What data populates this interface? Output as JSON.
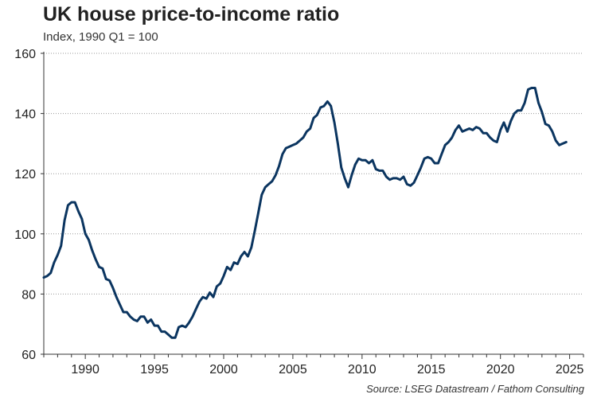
{
  "chart_data": {
    "type": "line",
    "title": "UK house price-to-income ratio",
    "subtitle": "Index, 1990 Q1 = 100",
    "source": "Source: LSEG Datastream / Fathom Consulting",
    "xlabel": "",
    "ylabel": "",
    "xlim": [
      1987,
      2026
    ],
    "ylim": [
      60,
      160
    ],
    "yticks": [
      60,
      80,
      100,
      120,
      140,
      160
    ],
    "xticks": [
      1990,
      1995,
      2000,
      2005,
      2010,
      2015,
      2020,
      2025
    ],
    "grid": "horizontal-dotted",
    "line_color": "#0b3560",
    "series": [
      {
        "name": "UK house price-to-income ratio",
        "x": [
          1987.0,
          1987.25,
          1987.5,
          1987.75,
          1988.0,
          1988.25,
          1988.5,
          1988.75,
          1989.0,
          1989.25,
          1989.5,
          1989.75,
          1990.0,
          1990.25,
          1990.5,
          1990.75,
          1991.0,
          1991.25,
          1991.5,
          1991.75,
          1992.0,
          1992.25,
          1992.5,
          1992.75,
          1993.0,
          1993.25,
          1993.5,
          1993.75,
          1994.0,
          1994.25,
          1994.5,
          1994.75,
          1995.0,
          1995.25,
          1995.5,
          1995.75,
          1996.0,
          1996.25,
          1996.5,
          1996.75,
          1997.0,
          1997.25,
          1997.5,
          1997.75,
          1998.0,
          1998.25,
          1998.5,
          1998.75,
          1999.0,
          1999.25,
          1999.5,
          1999.75,
          2000.0,
          2000.25,
          2000.5,
          2000.75,
          2001.0,
          2001.25,
          2001.5,
          2001.75,
          2002.0,
          2002.25,
          2002.5,
          2002.75,
          2003.0,
          2003.25,
          2003.5,
          2003.75,
          2004.0,
          2004.25,
          2004.5,
          2004.75,
          2005.0,
          2005.25,
          2005.5,
          2005.75,
          2006.0,
          2006.25,
          2006.5,
          2006.75,
          2007.0,
          2007.25,
          2007.5,
          2007.75,
          2008.0,
          2008.25,
          2008.5,
          2008.75,
          2009.0,
          2009.25,
          2009.5,
          2009.75,
          2010.0,
          2010.25,
          2010.5,
          2010.75,
          2011.0,
          2011.25,
          2011.5,
          2011.75,
          2012.0,
          2012.25,
          2012.5,
          2012.75,
          2013.0,
          2013.25,
          2013.5,
          2013.75,
          2014.0,
          2014.25,
          2014.5,
          2014.75,
          2015.0,
          2015.25,
          2015.5,
          2015.75,
          2016.0,
          2016.25,
          2016.5,
          2016.75,
          2017.0,
          2017.25,
          2017.5,
          2017.75,
          2018.0,
          2018.25,
          2018.5,
          2018.75,
          2019.0,
          2019.25,
          2019.5,
          2019.75,
          2020.0,
          2020.25,
          2020.5,
          2020.75,
          2021.0,
          2021.25,
          2021.5,
          2021.75,
          2022.0,
          2022.25,
          2022.5,
          2022.75,
          2023.0,
          2023.25,
          2023.5,
          2023.75,
          2024.0,
          2024.25,
          2024.5,
          2024.75
        ],
        "values": [
          85.5,
          86,
          87,
          90.5,
          93,
          96,
          104.5,
          109.5,
          110.5,
          110.5,
          107.5,
          105,
          100,
          98,
          94.5,
          91.5,
          89,
          88.5,
          85,
          84.5,
          82,
          79,
          76.5,
          74,
          74,
          72.5,
          71.5,
          71,
          72.5,
          72.5,
          70.5,
          71.5,
          69.5,
          69.5,
          67.5,
          67.5,
          66.5,
          65.5,
          65.5,
          69,
          69.5,
          69,
          70.5,
          72.5,
          75,
          77.5,
          79,
          78.5,
          80.5,
          79,
          82.5,
          83.5,
          86,
          89,
          88,
          90.5,
          90,
          92.5,
          94,
          92.5,
          95.5,
          101,
          107,
          113,
          115.5,
          116.5,
          117.5,
          119.5,
          122.5,
          126.5,
          128.5,
          129,
          129.5,
          130,
          131,
          132,
          134,
          135,
          138.5,
          139.5,
          142,
          142.5,
          144,
          142.5,
          137,
          130,
          122,
          118.5,
          115.5,
          119.5,
          123,
          125,
          124.5,
          124.5,
          123.5,
          124.5,
          121.5,
          121,
          121,
          119,
          118,
          118.5,
          118.5,
          118,
          119,
          116.5,
          116,
          117,
          119.5,
          122,
          125,
          125.5,
          125,
          123.5,
          123.5,
          126.5,
          129.5,
          130.5,
          132,
          134.5,
          136,
          134,
          134.5,
          135,
          134.5,
          135.5,
          135,
          133.5,
          133.5,
          132,
          131,
          130.5,
          134.5,
          137,
          134,
          137.5,
          140,
          141,
          141,
          143.5,
          148,
          148.5,
          148.5,
          143.5,
          140.5,
          136.5,
          136,
          134,
          131,
          129.5,
          130,
          130.5
        ]
      }
    ]
  }
}
